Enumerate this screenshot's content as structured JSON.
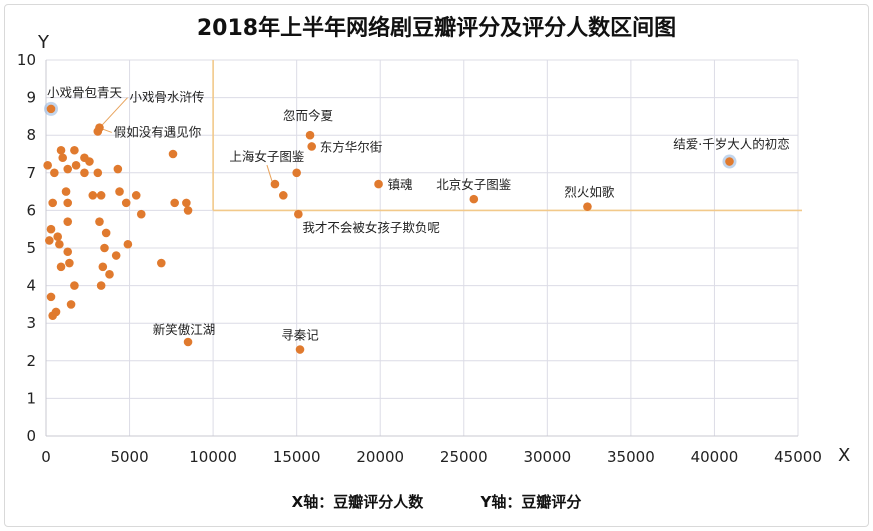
{
  "chart_data": {
    "type": "scatter",
    "title": "2018年上半年网络剧豆瓣评分及评分人数区间图",
    "xlabel": "X",
    "ylabel": "Y",
    "xlim": [
      0,
      45000
    ],
    "ylim": [
      0,
      10
    ],
    "xticks": [
      0,
      5000,
      10000,
      15000,
      20000,
      25000,
      30000,
      35000,
      40000,
      45000
    ],
    "yticks": [
      0,
      1,
      2,
      3,
      4,
      5,
      6,
      7,
      8,
      9,
      10
    ],
    "grid": true,
    "caption_x": "X轴：豆瓣评分人数",
    "caption_y": "Y轴：豆瓣评分",
    "reference_lines": {
      "x": 10000,
      "y": 6,
      "color": "#f2c98a"
    },
    "point_color": "#e07a2e",
    "points": [
      {
        "x": 300,
        "y": 8.7,
        "label": "小戏骨包青天",
        "highlight": true
      },
      {
        "x": 3200,
        "y": 8.2,
        "label": "小戏骨水浒传"
      },
      {
        "x": 3100,
        "y": 8.1,
        "label": "假如没有遇见你"
      },
      {
        "x": 15800,
        "y": 8.0,
        "label": "忽而今夏"
      },
      {
        "x": 15900,
        "y": 7.7,
        "label": "东方华尔街"
      },
      {
        "x": 40900,
        "y": 7.3,
        "label": "结爱·千岁大人的初恋",
        "highlight": true
      },
      {
        "x": 13700,
        "y": 6.7,
        "label": "上海女子图鉴"
      },
      {
        "x": 19900,
        "y": 6.7,
        "label": "镇魂"
      },
      {
        "x": 25600,
        "y": 6.3,
        "label": "北京女子图鉴"
      },
      {
        "x": 32400,
        "y": 6.1,
        "label": "烈火如歌"
      },
      {
        "x": 15100,
        "y": 5.9,
        "label": "我才不会被女孩子欺负呢"
      },
      {
        "x": 8500,
        "y": 2.5,
        "label": "新笑傲江湖"
      },
      {
        "x": 15200,
        "y": 2.3,
        "label": "寻秦记"
      },
      {
        "x": 100,
        "y": 7.2
      },
      {
        "x": 500,
        "y": 7.0
      },
      {
        "x": 900,
        "y": 7.6
      },
      {
        "x": 1000,
        "y": 7.4
      },
      {
        "x": 1300,
        "y": 7.1
      },
      {
        "x": 1700,
        "y": 7.6
      },
      {
        "x": 1800,
        "y": 7.2
      },
      {
        "x": 2300,
        "y": 7.4
      },
      {
        "x": 2300,
        "y": 7.0
      },
      {
        "x": 2600,
        "y": 7.3
      },
      {
        "x": 3100,
        "y": 7.0
      },
      {
        "x": 4300,
        "y": 7.1
      },
      {
        "x": 7600,
        "y": 7.5
      },
      {
        "x": 15000,
        "y": 7.0
      },
      {
        "x": 14200,
        "y": 6.4
      },
      {
        "x": 1200,
        "y": 6.5
      },
      {
        "x": 1300,
        "y": 6.2
      },
      {
        "x": 2800,
        "y": 6.4
      },
      {
        "x": 3300,
        "y": 6.4
      },
      {
        "x": 4400,
        "y": 6.5
      },
      {
        "x": 4800,
        "y": 6.2
      },
      {
        "x": 5400,
        "y": 6.4
      },
      {
        "x": 7700,
        "y": 6.2
      },
      {
        "x": 8400,
        "y": 6.2
      },
      {
        "x": 8500,
        "y": 6.0
      },
      {
        "x": 5700,
        "y": 5.9
      },
      {
        "x": 400,
        "y": 6.2
      },
      {
        "x": 1300,
        "y": 5.7
      },
      {
        "x": 3200,
        "y": 5.7
      },
      {
        "x": 300,
        "y": 5.5
      },
      {
        "x": 700,
        "y": 5.3
      },
      {
        "x": 200,
        "y": 5.2
      },
      {
        "x": 800,
        "y": 5.1
      },
      {
        "x": 3600,
        "y": 5.4
      },
      {
        "x": 3500,
        "y": 5.0
      },
      {
        "x": 4200,
        "y": 4.8
      },
      {
        "x": 4900,
        "y": 5.1
      },
      {
        "x": 1300,
        "y": 4.9
      },
      {
        "x": 1400,
        "y": 4.6
      },
      {
        "x": 900,
        "y": 4.5
      },
      {
        "x": 3400,
        "y": 4.5
      },
      {
        "x": 3800,
        "y": 4.3
      },
      {
        "x": 6900,
        "y": 4.6
      },
      {
        "x": 1700,
        "y": 4.0
      },
      {
        "x": 3300,
        "y": 4.0
      },
      {
        "x": 300,
        "y": 3.7
      },
      {
        "x": 1500,
        "y": 3.5
      },
      {
        "x": 600,
        "y": 3.3
      },
      {
        "x": 400,
        "y": 3.2
      }
    ]
  }
}
